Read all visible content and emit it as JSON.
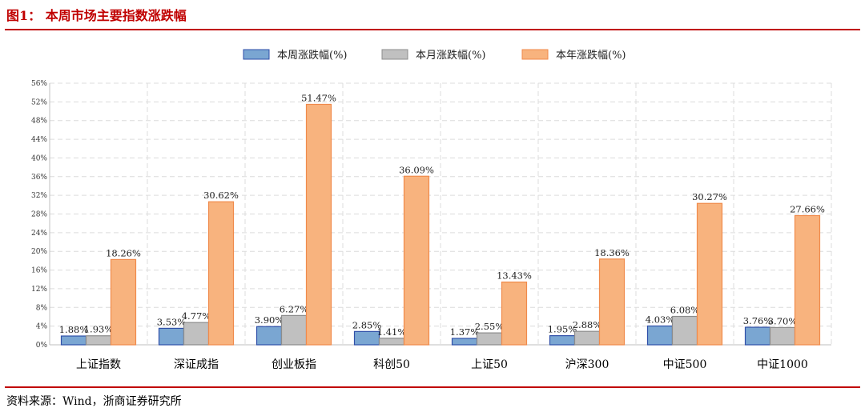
{
  "figure": {
    "title": "图1：  本周市场主要指数涨跌幅",
    "source": "资料来源：Wind，浙商证券研究所"
  },
  "chart_data": {
    "type": "bar",
    "categories": [
      "上证指数",
      "深证成指",
      "创业板指",
      "科创50",
      "上证50",
      "沪深300",
      "中证500",
      "中证1000"
    ],
    "series": [
      {
        "name": "本周涨跌幅(%)",
        "color": "#7aa6d2",
        "stroke": "#2f4fa8",
        "values": [
          1.88,
          3.53,
          3.9,
          2.85,
          1.37,
          1.95,
          4.03,
          3.76
        ]
      },
      {
        "name": "本月涨跌幅(%)",
        "color": "#c0c0c0",
        "stroke": "#8c8c8c",
        "values": [
          1.93,
          4.77,
          6.27,
          1.41,
          2.55,
          2.88,
          6.08,
          3.7
        ]
      },
      {
        "name": "本年涨跌幅(%)",
        "color": "#f8b37e",
        "stroke": "#f08a4b",
        "values": [
          18.26,
          30.62,
          51.47,
          36.09,
          13.43,
          18.36,
          30.27,
          27.66
        ]
      }
    ],
    "ylim": [
      0,
      56
    ],
    "yticks": [
      0,
      4,
      8,
      12,
      16,
      20,
      24,
      28,
      32,
      36,
      40,
      44,
      48,
      52,
      56
    ],
    "ytick_format": "%",
    "grid": true,
    "legend": "top-center",
    "data_labels": true
  }
}
